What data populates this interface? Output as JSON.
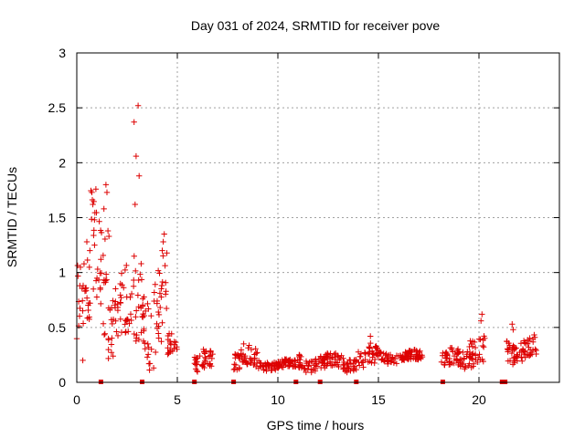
{
  "chart_data": {
    "type": "scatter",
    "title": "Day 031 of 2024, SRMTID for receiver pove",
    "xlabel": "GPS time / hours",
    "ylabel": "SRMTID / TECUs",
    "xlim": [
      0,
      24
    ],
    "ylim": [
      0,
      3
    ],
    "xticks": [
      0,
      5,
      10,
      15,
      20
    ],
    "xtick_labels": [
      "0",
      "5",
      "10",
      "15",
      "20"
    ],
    "yticks": [
      0,
      0.5,
      1,
      1.5,
      2,
      2.5,
      3
    ],
    "ytick_labels": [
      "0",
      "0.5",
      "1",
      "1.5",
      "2",
      "2.5",
      "3"
    ],
    "grid": true,
    "marker": "+",
    "color": "#dd0000",
    "segments": [
      {
        "t0": 0.0,
        "t1": 0.7,
        "base": 0.7,
        "spread": 0.55
      },
      {
        "t0": 0.7,
        "t1": 1.5,
        "base": 1.15,
        "spread": 0.75
      },
      {
        "t0": 1.5,
        "t1": 2.6,
        "base": 0.6,
        "spread": 0.5
      },
      {
        "t0": 2.6,
        "t1": 3.3,
        "base": 0.7,
        "spread": 0.6
      },
      {
        "t0": 3.3,
        "t1": 4.5,
        "base": 0.65,
        "spread": 0.6
      },
      {
        "t0": 4.5,
        "t1": 5.0,
        "base": 0.3,
        "spread": 0.15
      },
      {
        "t0": 5.8,
        "t1": 6.8,
        "base": 0.18,
        "spread": 0.12
      },
      {
        "t0": 7.8,
        "t1": 9.0,
        "base": 0.2,
        "spread": 0.14
      },
      {
        "t0": 9.0,
        "t1": 11.0,
        "base": 0.16,
        "spread": 0.06
      },
      {
        "t0": 11.0,
        "t1": 13.9,
        "base": 0.18,
        "spread": 0.1
      },
      {
        "t0": 14.0,
        "t1": 15.0,
        "base": 0.22,
        "spread": 0.14
      },
      {
        "t0": 15.0,
        "t1": 17.2,
        "base": 0.23,
        "spread": 0.07
      },
      {
        "t0": 18.1,
        "t1": 19.4,
        "base": 0.2,
        "spread": 0.12
      },
      {
        "t0": 19.4,
        "t1": 20.3,
        "base": 0.32,
        "spread": 0.2
      },
      {
        "t0": 21.3,
        "t1": 22.9,
        "base": 0.3,
        "spread": 0.14
      }
    ],
    "extra_points": [
      {
        "t": 0.5,
        "y": 1.28
      },
      {
        "t": 0.65,
        "y": 1.2
      },
      {
        "t": 0.75,
        "y": 1.73
      },
      {
        "t": 0.8,
        "y": 1.62
      },
      {
        "t": 0.88,
        "y": 1.48
      },
      {
        "t": 0.95,
        "y": 1.76
      },
      {
        "t": 1.45,
        "y": 1.8
      },
      {
        "t": 1.5,
        "y": 1.73
      },
      {
        "t": 1.35,
        "y": 1.58
      },
      {
        "t": 1.55,
        "y": 1.38
      },
      {
        "t": 1.6,
        "y": 1.33
      },
      {
        "t": 1.2,
        "y": 1.12
      },
      {
        "t": 2.85,
        "y": 2.37
      },
      {
        "t": 3.05,
        "y": 2.52
      },
      {
        "t": 2.95,
        "y": 2.06
      },
      {
        "t": 3.1,
        "y": 1.88
      },
      {
        "t": 2.9,
        "y": 1.62
      },
      {
        "t": 3.2,
        "y": 1.08
      },
      {
        "t": 4.35,
        "y": 1.35
      },
      {
        "t": 4.3,
        "y": 1.28
      },
      {
        "t": 4.25,
        "y": 1.2
      },
      {
        "t": 0.3,
        "y": 0.2
      },
      {
        "t": 1.65,
        "y": 0.66
      },
      {
        "t": 6.3,
        "y": 0.3
      },
      {
        "t": 8.3,
        "y": 0.35
      },
      {
        "t": 14.6,
        "y": 0.42
      },
      {
        "t": 20.15,
        "y": 0.62
      },
      {
        "t": 20.1,
        "y": 0.56
      },
      {
        "t": 21.65,
        "y": 0.53
      },
      {
        "t": 21.7,
        "y": 0.48
      }
    ],
    "baseline_marks": [
      1.2,
      3.25,
      5.85,
      7.8,
      10.9,
      12.1,
      13.9,
      18.2,
      21.15,
      21.3
    ]
  }
}
